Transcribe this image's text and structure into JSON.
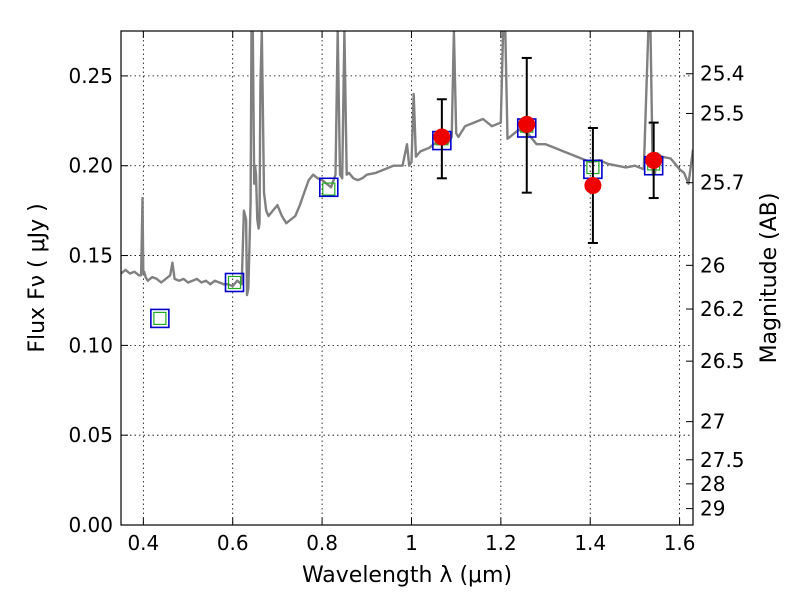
{
  "chart_data": {
    "type": "scatter",
    "xlabel": "Wavelength  λ (μm)",
    "ylabel": "Flux  Fν  ( μJy )",
    "y2label": "Magnitude (AB)",
    "xlim": [
      0.35,
      1.63
    ],
    "ylim": [
      0.0,
      0.275
    ],
    "grid": true,
    "x_ticks": [
      "0.4",
      "0.6",
      "0.8",
      "1",
      "1.2",
      "1.4",
      "1.6"
    ],
    "y_ticks": [
      "0.00",
      "0.05",
      "0.10",
      "0.15",
      "0.20",
      "0.25"
    ],
    "y2_ticks": [
      {
        "label": "25.4",
        "mag": 25.4
      },
      {
        "label": "25.5",
        "mag": 25.5
      },
      {
        "label": "25.7",
        "mag": 25.7
      },
      {
        "label": "26",
        "mag": 26.0
      },
      {
        "label": "26.2",
        "mag": 26.2
      },
      {
        "label": "26.5",
        "mag": 26.5
      },
      {
        "label": "27",
        "mag": 27.0
      },
      {
        "label": "27.5",
        "mag": 27.5
      },
      {
        "label": "28",
        "mag": 28.0
      },
      {
        "label": "29",
        "mag": 29.0
      }
    ],
    "series": [
      {
        "kind": "model_spectrum",
        "color": "#808080",
        "x": [
          0.35,
          0.36,
          0.37,
          0.38,
          0.39,
          0.395,
          0.398,
          0.4,
          0.402,
          0.405,
          0.41,
          0.42,
          0.43,
          0.44,
          0.45,
          0.46,
          0.465,
          0.47,
          0.48,
          0.49,
          0.5,
          0.51,
          0.52,
          0.53,
          0.54,
          0.55,
          0.56,
          0.57,
          0.58,
          0.59,
          0.6,
          0.61,
          0.62,
          0.625,
          0.63,
          0.632,
          0.635,
          0.64,
          0.642,
          0.645,
          0.648,
          0.65,
          0.652,
          0.655,
          0.658,
          0.66,
          0.662,
          0.665,
          0.67,
          0.675,
          0.68,
          0.69,
          0.7,
          0.71,
          0.72,
          0.73,
          0.74,
          0.75,
          0.76,
          0.77,
          0.78,
          0.79,
          0.8,
          0.81,
          0.82,
          0.83,
          0.835,
          0.84,
          0.845,
          0.85,
          0.855,
          0.86,
          0.87,
          0.88,
          0.89,
          0.9,
          0.92,
          0.94,
          0.96,
          0.98,
          0.99,
          0.995,
          1.0,
          1.005,
          1.01,
          1.02,
          1.04,
          1.06,
          1.08,
          1.09,
          1.095,
          1.1,
          1.105,
          1.11,
          1.12,
          1.14,
          1.16,
          1.18,
          1.2,
          1.205,
          1.21,
          1.215,
          1.22,
          1.24,
          1.26,
          1.27,
          1.28,
          1.3,
          1.32,
          1.34,
          1.36,
          1.38,
          1.4,
          1.42,
          1.44,
          1.46,
          1.48,
          1.5,
          1.52,
          1.53,
          1.535,
          1.54,
          1.545,
          1.55,
          1.56,
          1.58,
          1.6,
          1.61,
          1.62,
          1.63
        ],
        "values": [
          0.14,
          0.142,
          0.14,
          0.141,
          0.139,
          0.139,
          0.182,
          0.14,
          0.141,
          0.138,
          0.136,
          0.138,
          0.137,
          0.135,
          0.137,
          0.139,
          0.146,
          0.137,
          0.136,
          0.137,
          0.135,
          0.136,
          0.137,
          0.135,
          0.136,
          0.134,
          0.136,
          0.135,
          0.134,
          0.134,
          0.133,
          0.136,
          0.134,
          0.175,
          0.17,
          0.128,
          0.132,
          0.18,
          0.275,
          0.275,
          0.19,
          0.2,
          0.195,
          0.17,
          0.165,
          0.168,
          0.245,
          0.275,
          0.185,
          0.175,
          0.172,
          0.175,
          0.178,
          0.172,
          0.168,
          0.17,
          0.172,
          0.178,
          0.185,
          0.192,
          0.195,
          0.193,
          0.192,
          0.19,
          0.188,
          0.195,
          0.275,
          0.195,
          0.193,
          0.275,
          0.195,
          0.196,
          0.193,
          0.192,
          0.193,
          0.195,
          0.196,
          0.198,
          0.2,
          0.2,
          0.212,
          0.2,
          0.202,
          0.24,
          0.205,
          0.208,
          0.21,
          0.214,
          0.212,
          0.216,
          0.275,
          0.218,
          0.216,
          0.218,
          0.222,
          0.224,
          0.226,
          0.222,
          0.224,
          0.275,
          0.275,
          0.215,
          0.216,
          0.22,
          0.218,
          0.215,
          0.212,
          0.212,
          0.21,
          0.208,
          0.206,
          0.204,
          0.202,
          0.203,
          0.201,
          0.2,
          0.199,
          0.2,
          0.198,
          0.275,
          0.275,
          0.195,
          0.196,
          0.207,
          0.205,
          0.204,
          0.198,
          0.196,
          0.19,
          0.209
        ]
      },
      {
        "kind": "model_photometry_green",
        "color": "#22aa22",
        "x": [
          0.437,
          0.604,
          0.815,
          1.068,
          1.258,
          1.406,
          1.542
        ],
        "values": [
          0.115,
          0.135,
          0.187,
          0.215,
          0.222,
          0.199,
          0.201
        ]
      },
      {
        "kind": "model_photometry_blue",
        "color": "#0000cc",
        "x": [
          0.437,
          0.604,
          0.815,
          1.068,
          1.258,
          1.406,
          1.542
        ],
        "values": [
          0.115,
          0.135,
          0.188,
          0.214,
          0.221,
          0.198,
          0.2
        ]
      },
      {
        "kind": "observed",
        "color": "#ee0000",
        "x": [
          1.068,
          1.258,
          1.406,
          1.542
        ],
        "values": [
          0.216,
          0.223,
          0.189,
          0.203
        ],
        "err_low": [
          0.193,
          0.185,
          0.157,
          0.182
        ],
        "err_high": [
          0.237,
          0.26,
          0.221,
          0.224
        ]
      }
    ]
  }
}
